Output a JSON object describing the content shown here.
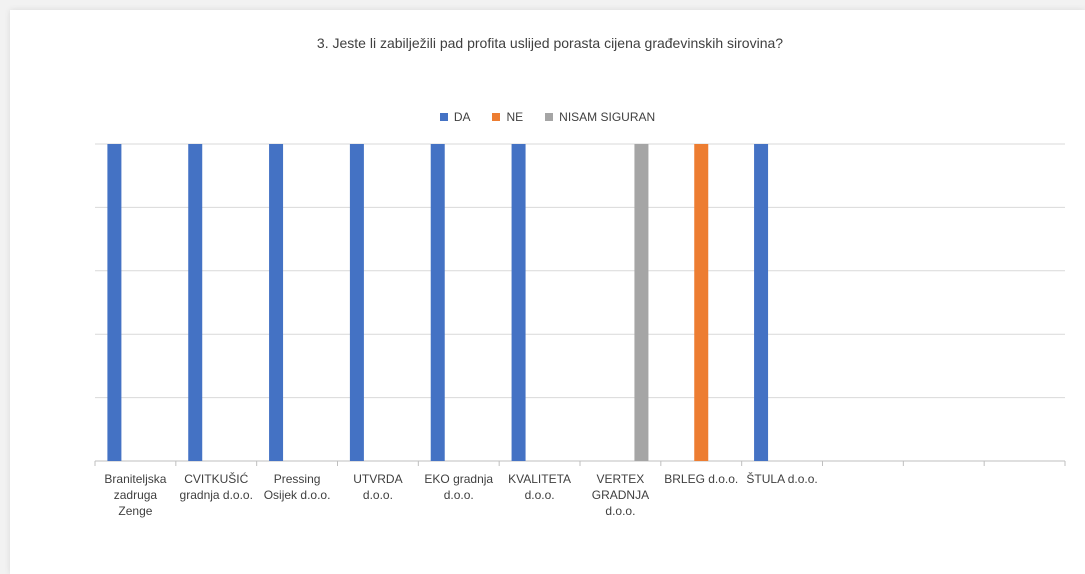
{
  "chart_data": {
    "type": "bar",
    "title": "3. Jeste li zabilježili pad profita uslijed porasta cijena građevinskih sirovina?",
    "categories": [
      "Braniteljska zadruga Zenge",
      "CVITKUŠIĆ gradnja d.o.o.",
      "Pressing Osijek d.o.o.",
      "UTVRDA d.o.o.",
      "EKO gradnja d.o.o.",
      "KVALITETA d.o.o.",
      "VERTEX GRADNJA d.o.o.",
      "BRLEG d.o.o.",
      "ŠTULA d.o.o.",
      "",
      "",
      ""
    ],
    "series": [
      {
        "name": "DA",
        "color": "#4472c4",
        "values": [
          1,
          1,
          1,
          1,
          1,
          1,
          0,
          0,
          1,
          null,
          null,
          null
        ]
      },
      {
        "name": "NE",
        "color": "#ed7d31",
        "values": [
          0,
          0,
          0,
          0,
          0,
          0,
          0,
          1,
          0,
          null,
          null,
          null
        ]
      },
      {
        "name": "NISAM SIGURAN",
        "color": "#a5a5a5",
        "values": [
          0,
          0,
          0,
          0,
          0,
          0,
          1,
          0,
          0,
          null,
          null,
          null
        ]
      }
    ],
    "ylim": [
      0,
      1
    ],
    "grid": true,
    "legend": "top-center"
  }
}
